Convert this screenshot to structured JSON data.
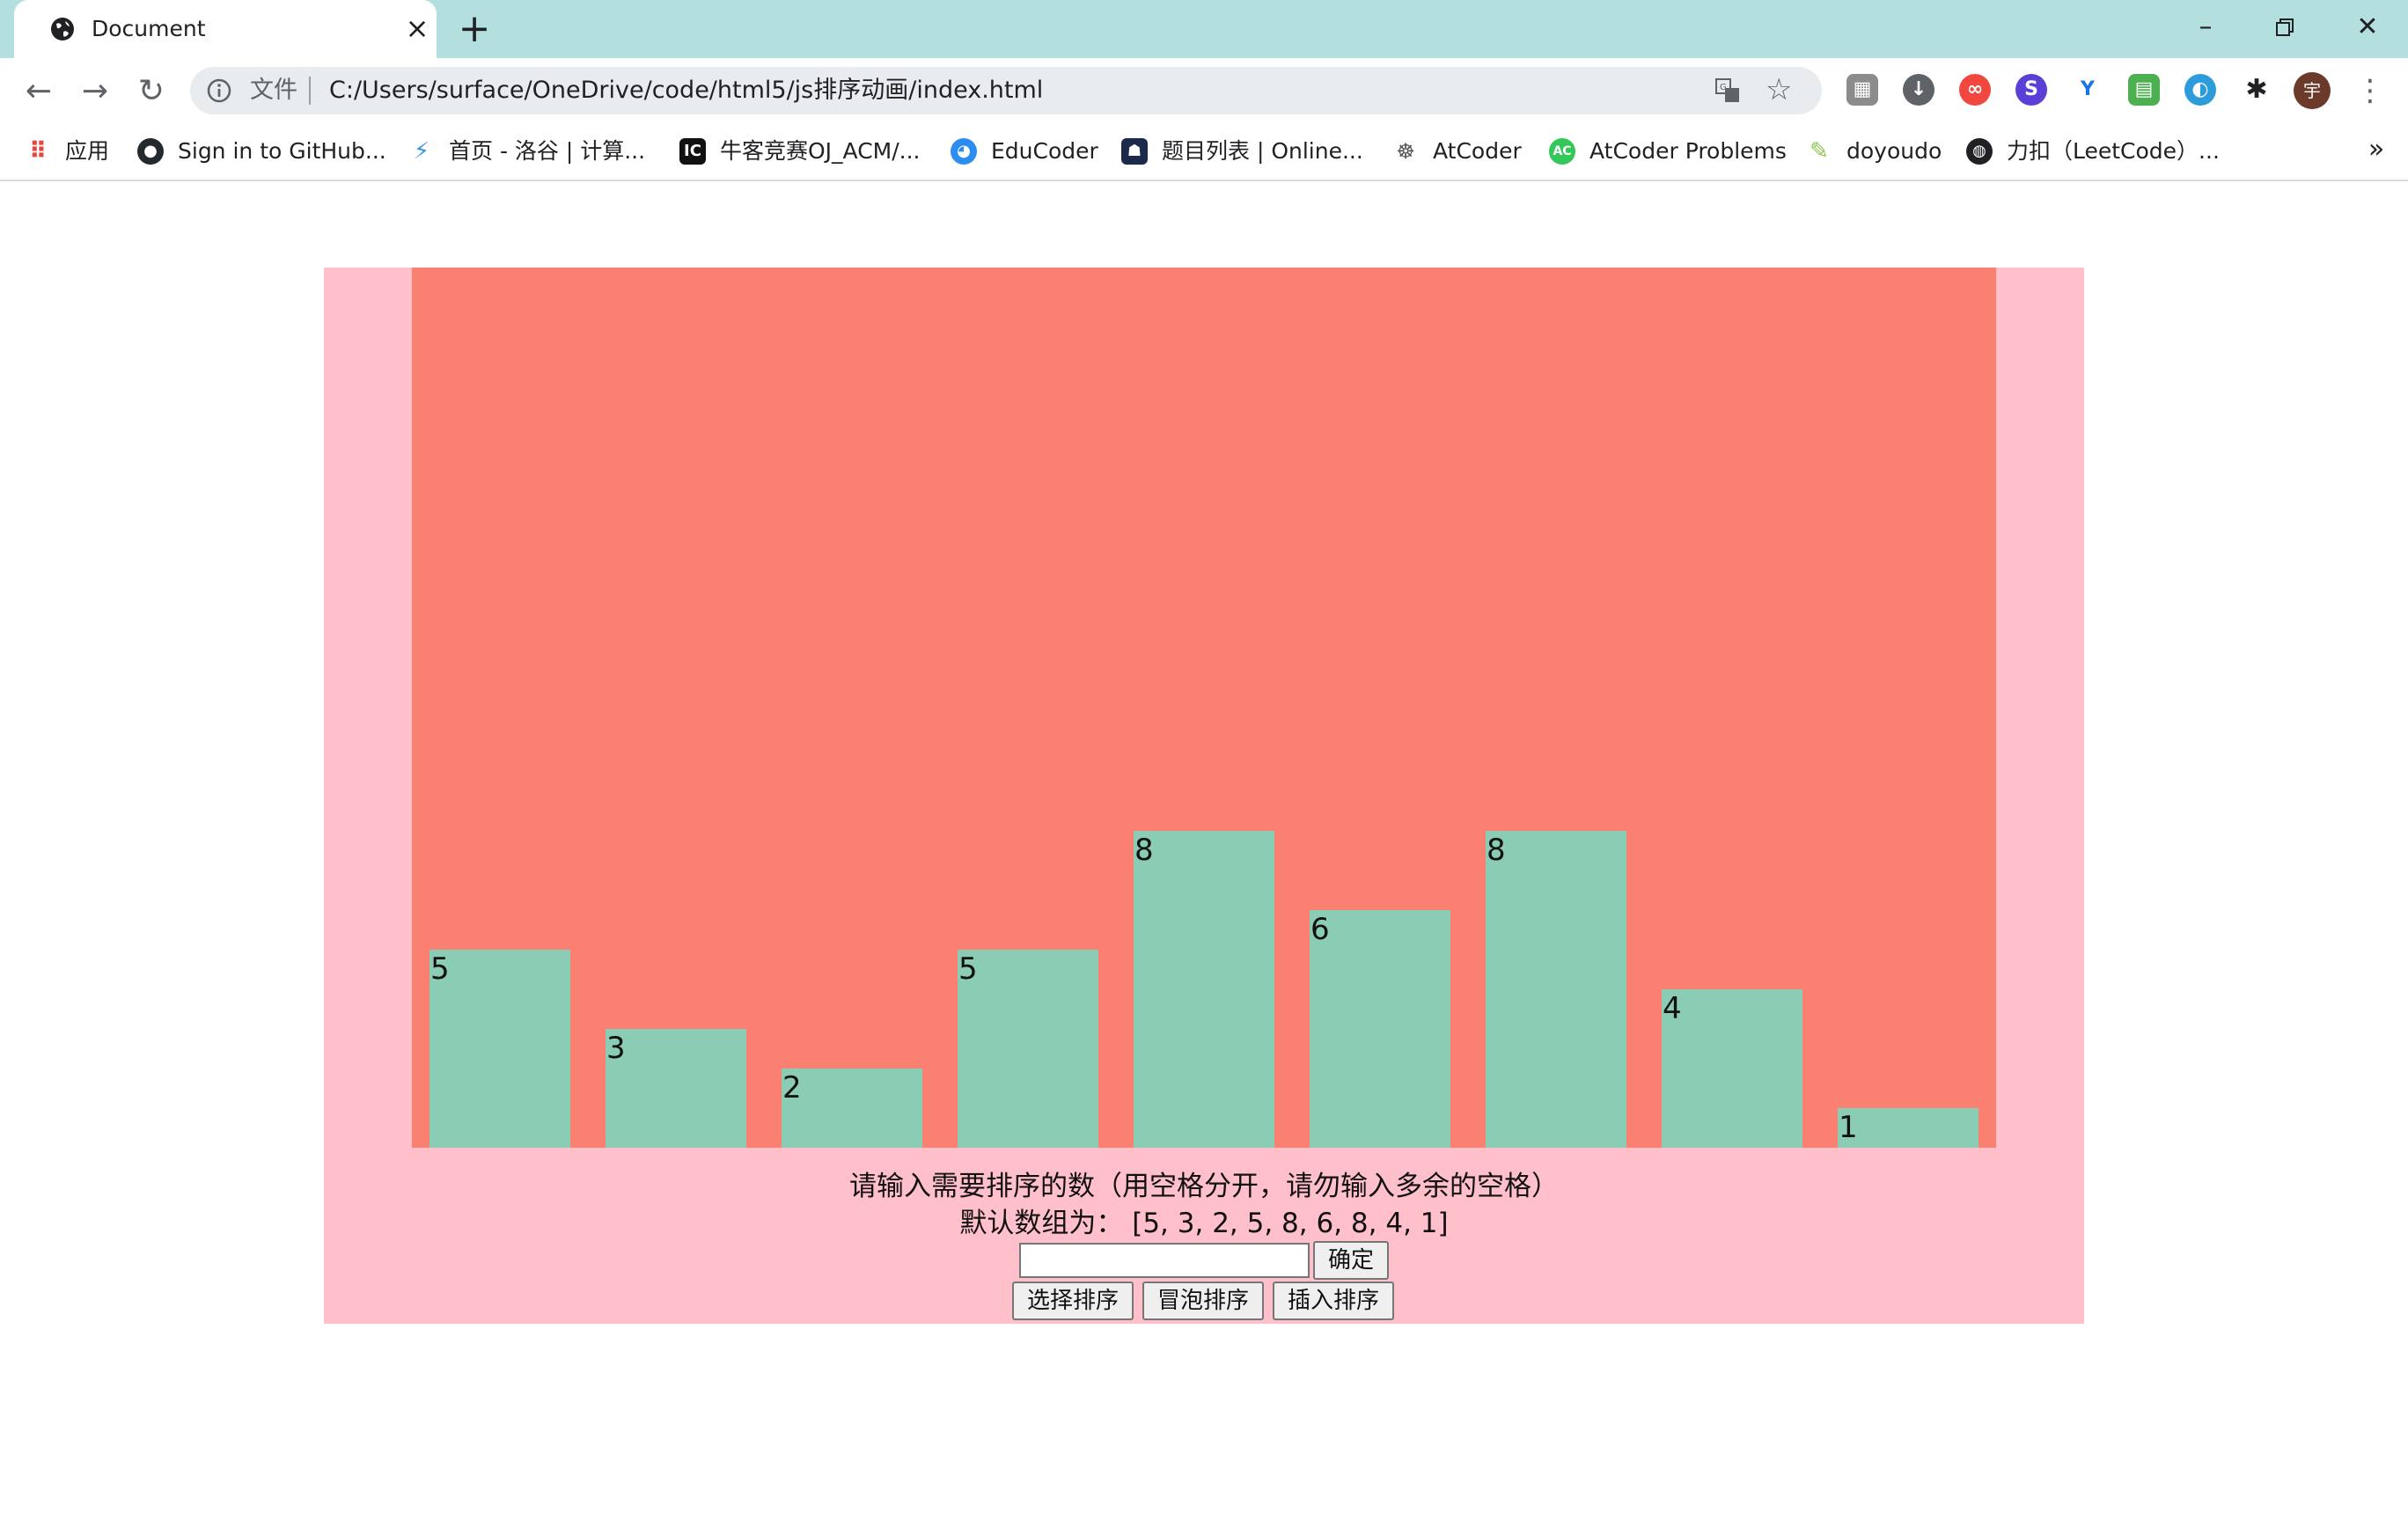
{
  "browser": {
    "tab_title": "Document",
    "scheme_label": "文件",
    "url": "C:/Users/surface/OneDrive/code/html5/js排序动画/index.html",
    "avatar_label": "宇",
    "bookmarks": [
      {
        "label": "应用",
        "icon": "apps-grid-icon"
      },
      {
        "label": "Sign in to GitHub...",
        "icon": "github-icon"
      },
      {
        "label": "首页 - 洛谷 | 计算...",
        "icon": "luogu-icon"
      },
      {
        "label": "牛客竞赛OJ_ACM/...",
        "icon": "nowcoder-icon"
      },
      {
        "label": "EduCoder",
        "icon": "educoder-icon"
      },
      {
        "label": "题目列表 | Online...",
        "icon": "online-judge-icon"
      },
      {
        "label": "AtCoder",
        "icon": "atcoder-icon"
      },
      {
        "label": "AtCoder Problems",
        "icon": "atcoder-problems-icon"
      },
      {
        "label": "doyoudo",
        "icon": "doyoudo-icon"
      },
      {
        "label": "力扣（LeetCode）...",
        "icon": "globe-icon"
      }
    ],
    "more_bookmarks": "»"
  },
  "page": {
    "prompt": "请输入需要排序的数（用空格分开，请勿输入多余的空格）",
    "default_label": "默认数组为：",
    "default_array": "[5, 3, 2, 5, 8, 6, 8, 4, 1]",
    "input_value": "",
    "confirm_label": "确定",
    "sort_buttons": {
      "selection": "选择排序",
      "bubble": "冒泡排序",
      "insertion": "插入排序"
    }
  },
  "chart_data": {
    "type": "bar",
    "values": [
      5,
      3,
      2,
      5,
      8,
      6,
      8,
      4,
      1
    ],
    "labels": [
      "5",
      "3",
      "2",
      "5",
      "8",
      "6",
      "8",
      "4",
      "1"
    ],
    "colors": {
      "background": "#fa8072",
      "bar": "#8acdb4",
      "container": "#ffc0cb"
    }
  }
}
